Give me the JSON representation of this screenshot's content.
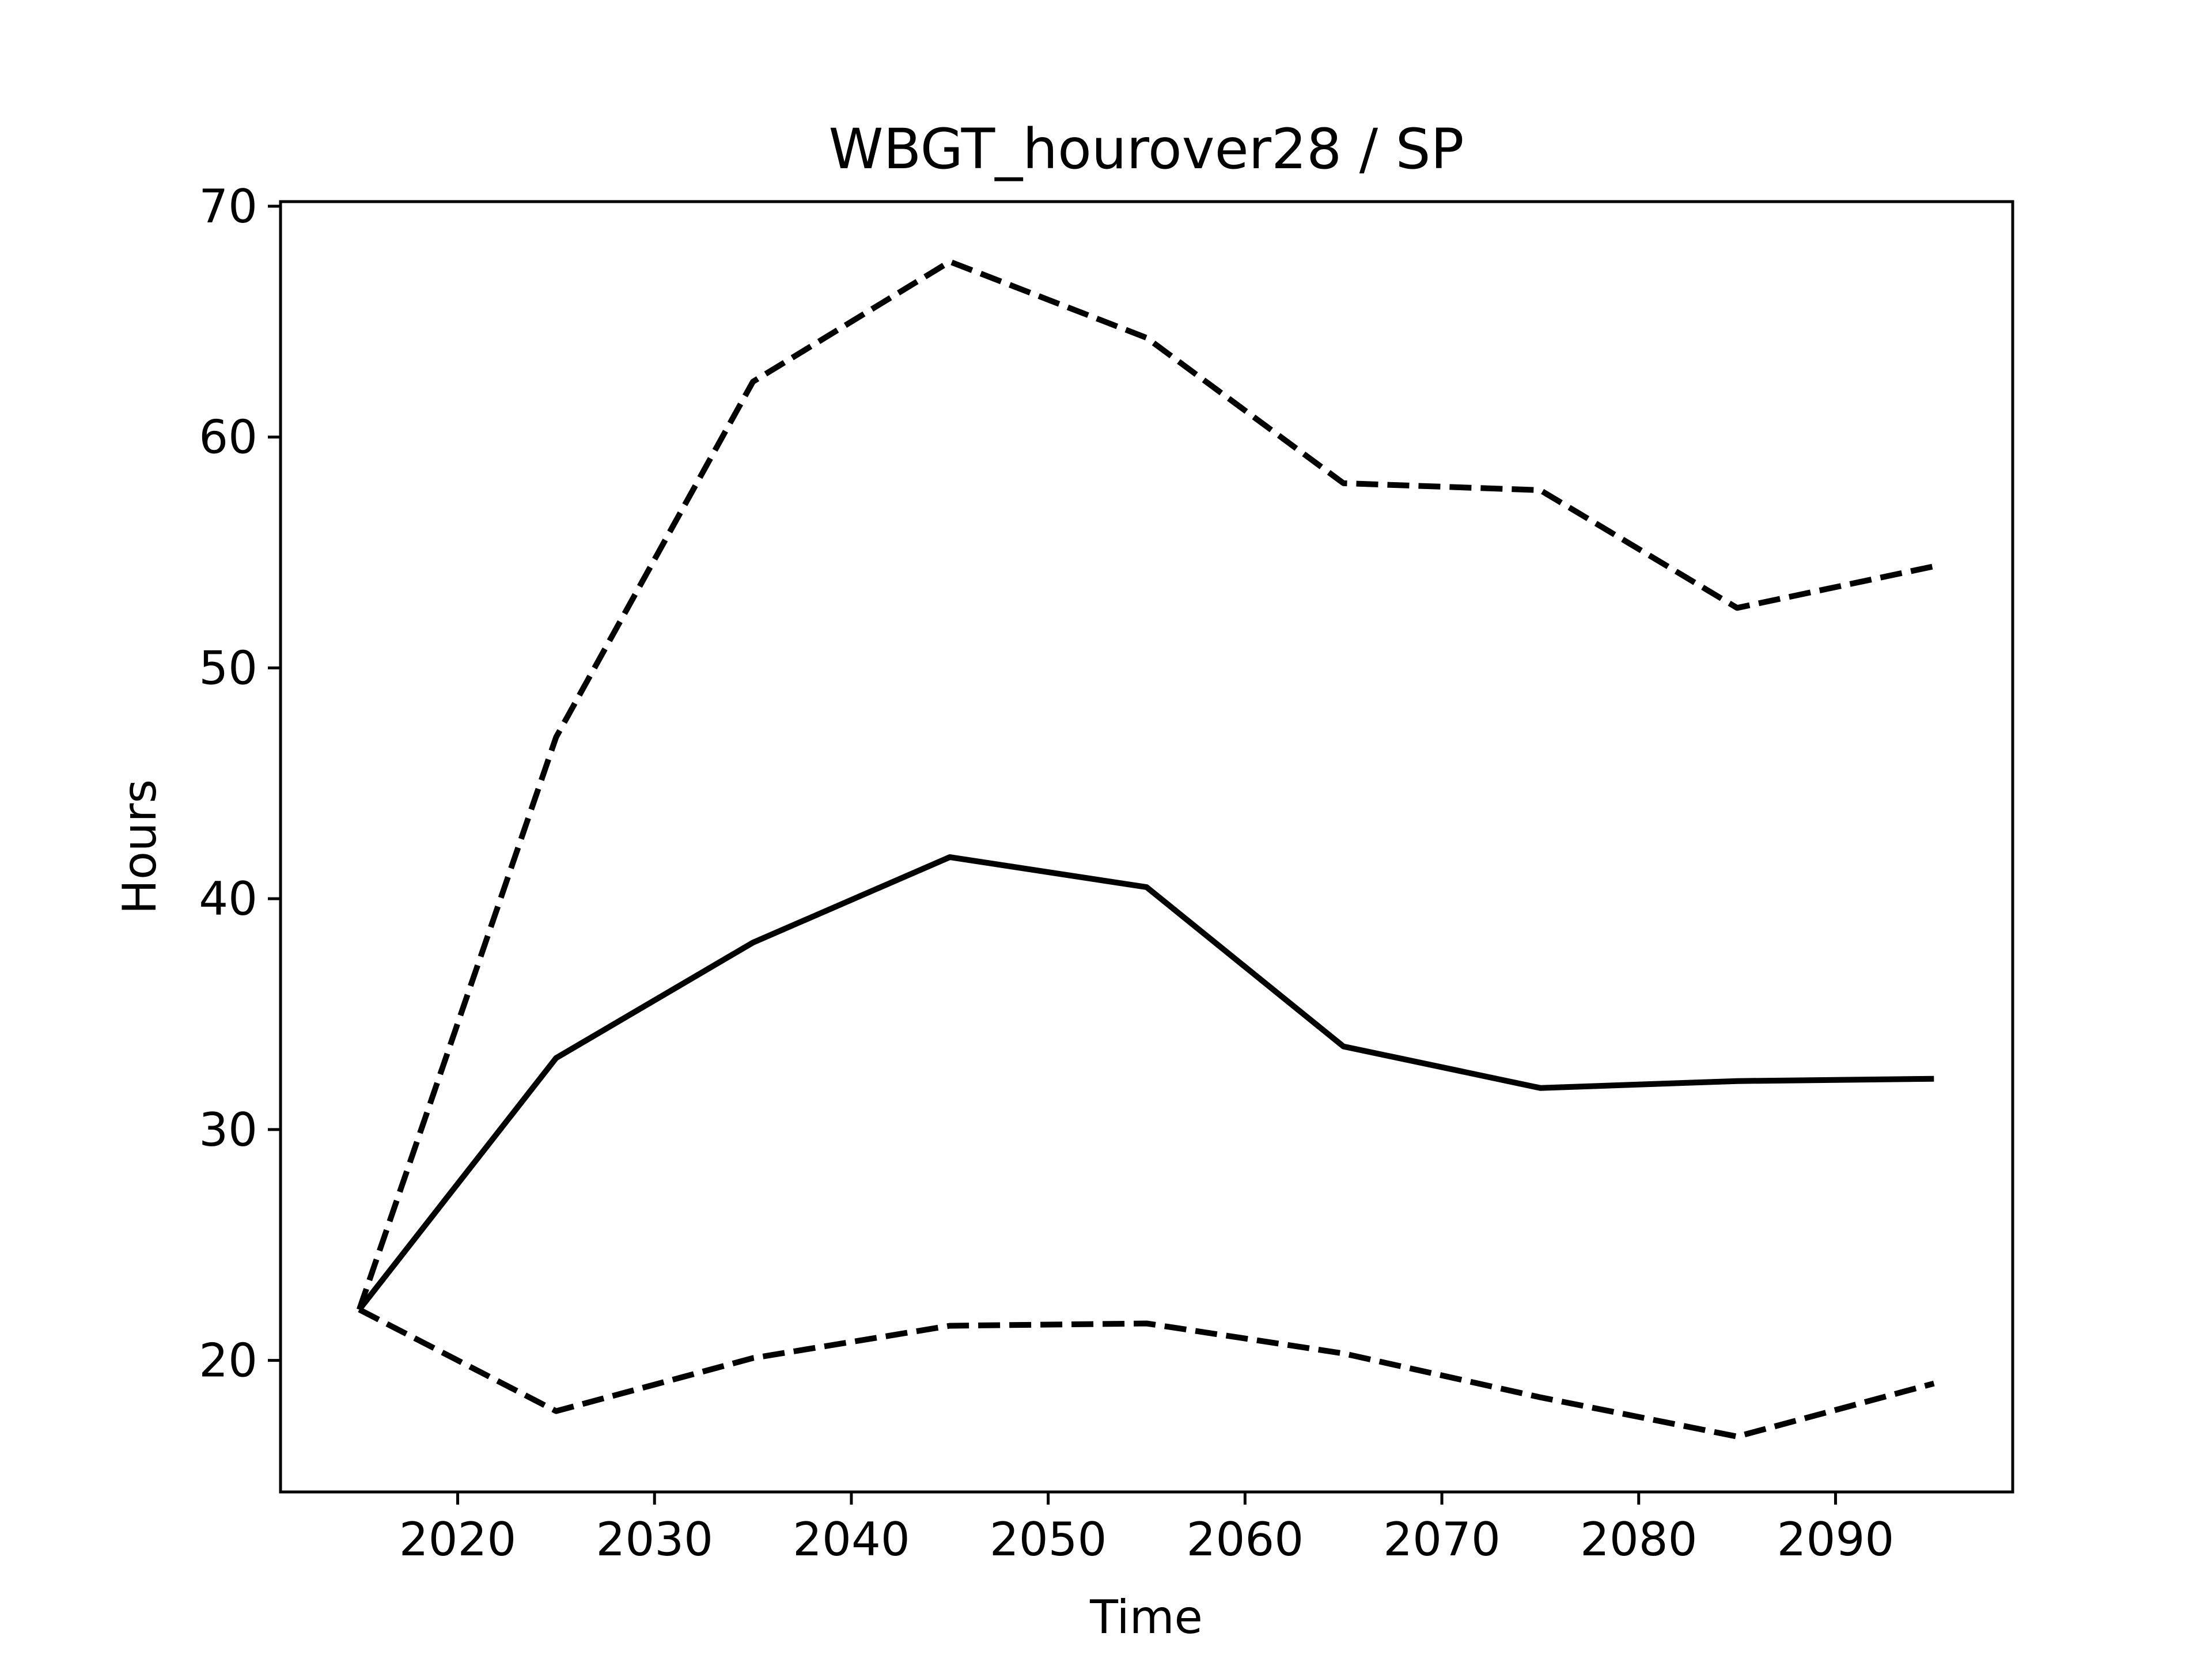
{
  "chart_data": {
    "type": "line",
    "title": "WBGT_hourover28 / SP",
    "xlabel": "Time",
    "ylabel": "Hours",
    "xlim": [
      2011,
      2099
    ],
    "ylim": [
      14.3,
      70.2
    ],
    "xticks": [
      2020,
      2030,
      2040,
      2050,
      2060,
      2070,
      2080,
      2090
    ],
    "yticks": [
      20,
      30,
      40,
      50,
      60,
      70
    ],
    "grid": false,
    "x": [
      2015,
      2025,
      2035,
      2045,
      2055,
      2065,
      2075,
      2085,
      2095
    ],
    "series": [
      {
        "style": "dashed",
        "color": "#000000",
        "values": [
          22.2,
          47.0,
          62.4,
          67.6,
          64.3,
          58.0,
          57.7,
          52.6,
          54.4
        ]
      },
      {
        "style": "solid",
        "color": "#000000",
        "values": [
          22.2,
          33.1,
          38.1,
          41.8,
          40.5,
          33.6,
          31.8,
          32.1,
          32.2
        ]
      },
      {
        "style": "dashed",
        "color": "#000000",
        "values": [
          22.2,
          17.8,
          20.1,
          21.5,
          21.6,
          20.3,
          18.4,
          16.7,
          19.0
        ]
      }
    ]
  }
}
